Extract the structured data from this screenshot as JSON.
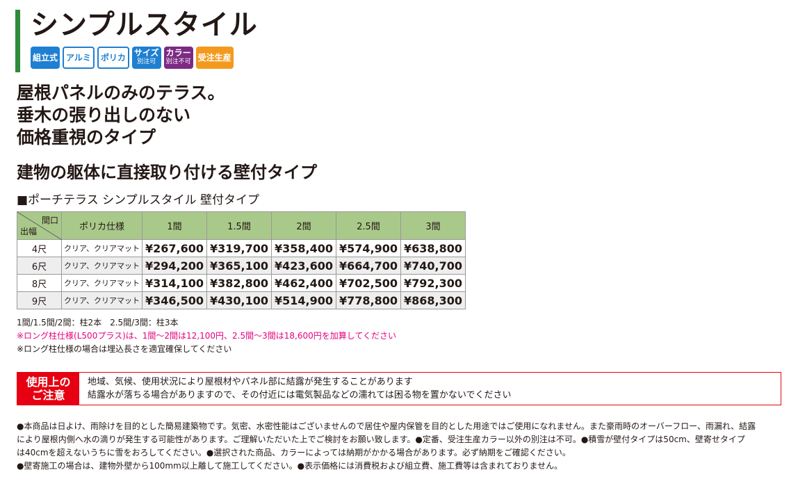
{
  "title": "シンプルスタイル",
  "badges": [
    {
      "label": "組立式",
      "sub": "",
      "style": "blue"
    },
    {
      "label": "アルミ",
      "sub": "",
      "style": "outline"
    },
    {
      "label": "ポリカ",
      "sub": "",
      "style": "outline"
    },
    {
      "label": "サイズ",
      "sub": "別注可",
      "style": "blue"
    },
    {
      "label": "カラー",
      "sub": "別注不可",
      "style": "purple"
    },
    {
      "label": "受注生産",
      "sub": "",
      "style": "orange"
    }
  ],
  "headline": [
    "屋根パネルのみのテラス。",
    "垂木の張り出しのない",
    "価格重視のタイプ"
  ],
  "subheading": "建物の躯体に直接取り付ける壁付タイプ",
  "table": {
    "title": "■ポーチテラス シンプルスタイル 壁付タイプ",
    "corner_top": "間口",
    "corner_bottom": "出幅",
    "finish_header": "ポリカ仕様",
    "columns": [
      "1間",
      "1.5間",
      "2間",
      "2.5間",
      "3間"
    ],
    "rows": [
      {
        "depth": "4尺",
        "finish": "クリア、クリアマット",
        "prices": [
          "¥267,600",
          "¥319,700",
          "¥358,400",
          "¥574,900",
          "¥638,800"
        ]
      },
      {
        "depth": "6尺",
        "finish": "クリア、クリアマット",
        "prices": [
          "¥294,200",
          "¥365,100",
          "¥423,600",
          "¥664,700",
          "¥740,700"
        ]
      },
      {
        "depth": "8尺",
        "finish": "クリア、クリアマット",
        "prices": [
          "¥314,100",
          "¥382,800",
          "¥462,400",
          "¥702,500",
          "¥792,300"
        ]
      },
      {
        "depth": "9尺",
        "finish": "クリア、クリアマット",
        "prices": [
          "¥346,500",
          "¥430,100",
          "¥514,900",
          "¥778,800",
          "¥868,300"
        ]
      }
    ]
  },
  "notes": {
    "posts": "1間/1.5間/2間：柱2本　2.5間/3間：柱3本",
    "long_post": "※ロング柱仕様(L500プラス)は、1間～2間は12,100円、2.5間～3間は18,600円を加算してください",
    "burial": "※ロング柱仕様の場合は埋込長さを適宜確保してください"
  },
  "caution": {
    "label_line1": "使用上の",
    "label_line2": "ご注意",
    "line1": "地域、気候、使用状況により屋根材やパネル部に結露が発生することがあります",
    "line2": "結露水が落ちる場合がありますので、その付近には電気製品などの濡れては困る物を置かないでください"
  },
  "footer": [
    "●本商品は日よけ、雨除けを目的とした簡易建築物です。気密、水密性能はございませんので居住や屋内保管を目的とした用途ではご使用になれません。また豪雨時のオーバーフロー、雨漏れ、結露",
    "により屋根内側へ水の滴りが発生する可能性があります。ご理解いただいた上でご検討をお願い致します。●定番、受注生産カラー以外の別注は不可。●積雪が壁付タイプは50cm、壁寄せタイプ",
    "は40cmを超えないうちに雪をおろしてください。●選択された商品、カラーによっては納期がかかる場合があります。必ず納期をご確認ください。",
    "●壁寄施工の場合は、建物外壁から100mm以上離して施工してください。●表示価格には消費税および組立費、施工費等は含まれておりません。"
  ],
  "colors": {
    "accent_green": "#2e8b3a",
    "badge_blue": "#1f7fd1",
    "badge_purple": "#7c2a84",
    "badge_orange": "#f39a1e",
    "table_header": "#a9c98a",
    "caution_red": "#e60012",
    "note_pink": "#e4007f"
  }
}
